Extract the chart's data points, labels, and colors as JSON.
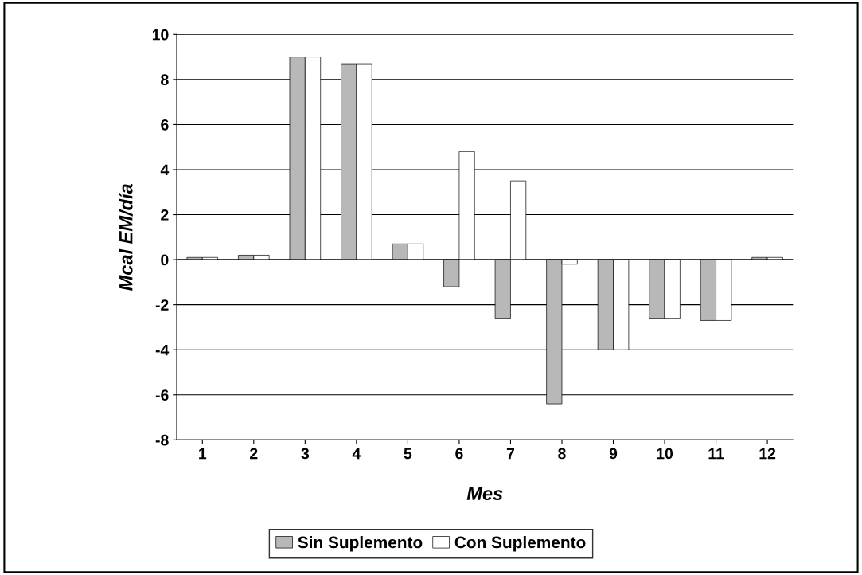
{
  "chart_data": {
    "type": "bar",
    "xlabel": "Mes",
    "ylabel": "Mcal EM/día",
    "categories": [
      "1",
      "2",
      "3",
      "4",
      "5",
      "6",
      "7",
      "8",
      "9",
      "10",
      "11",
      "12"
    ],
    "series": [
      {
        "name": "Sin Suplemento",
        "color": "#b8b8b8",
        "values": [
          0.1,
          0.2,
          9.0,
          8.7,
          0.7,
          -1.2,
          -2.6,
          -6.4,
          -4.0,
          -2.6,
          -2.7,
          0.1
        ]
      },
      {
        "name": "Con Suplemento",
        "color": "#ffffff",
        "values": [
          0.1,
          0.2,
          9.0,
          8.7,
          0.7,
          4.8,
          3.5,
          -0.2,
          -4.0,
          -2.6,
          -2.7,
          0.1
        ]
      }
    ],
    "ylim": [
      -8,
      10
    ],
    "yticks": [
      -8,
      -6,
      -4,
      -2,
      0,
      2,
      4,
      6,
      8,
      10
    ],
    "grid": "y",
    "legend": "bottom"
  }
}
